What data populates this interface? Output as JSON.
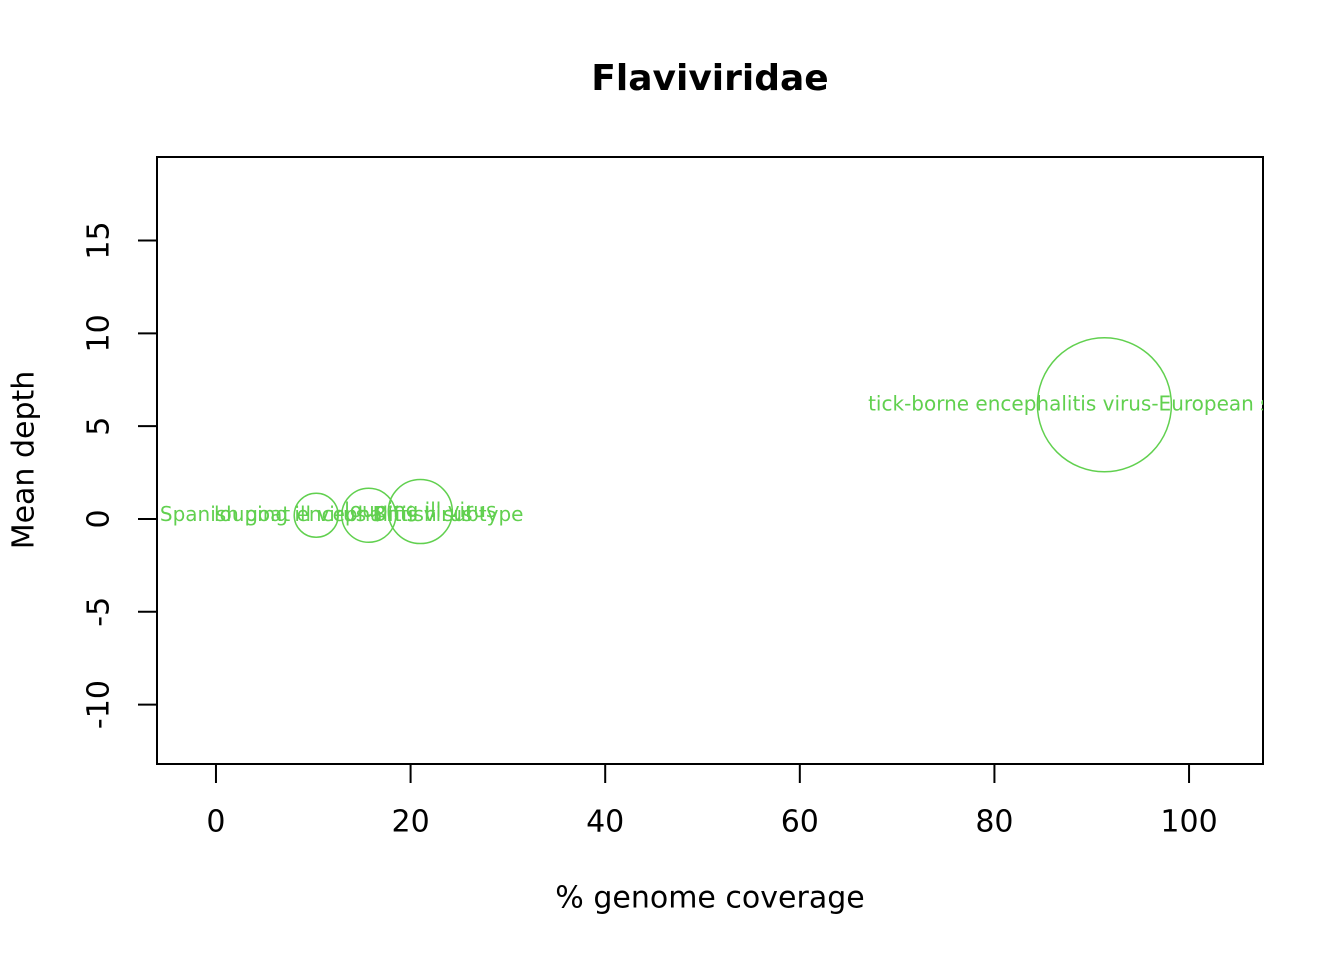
{
  "chart_data": {
    "type": "bubble",
    "title": "Flaviviridae",
    "x_label": "% genome coverage",
    "y_label": "Mean depth",
    "color": "#61D04F",
    "points": [
      {
        "label": "Spanish goat encephalitis virus",
        "x": 10.3,
        "y": 0.2,
        "size": 22
      },
      {
        "label": "louping ill virus-British subtype",
        "x": 15.7,
        "y": 0.2,
        "size": 27
      },
      {
        "label": "louping ill virus",
        "x": 21.0,
        "y": 0.4,
        "size": 32
      },
      {
        "label": "tick-borne encephalitis virus-European subtype",
        "x": 91.3,
        "y": 6.15,
        "size": 67
      }
    ],
    "xlim": [
      -6.06,
      107.6
    ],
    "ylim": [
      -13.2,
      19.5
    ],
    "xticks": [
      0,
      20,
      40,
      60,
      80,
      100
    ],
    "yticks": [
      -10,
      -5,
      0,
      5,
      10,
      15
    ]
  }
}
